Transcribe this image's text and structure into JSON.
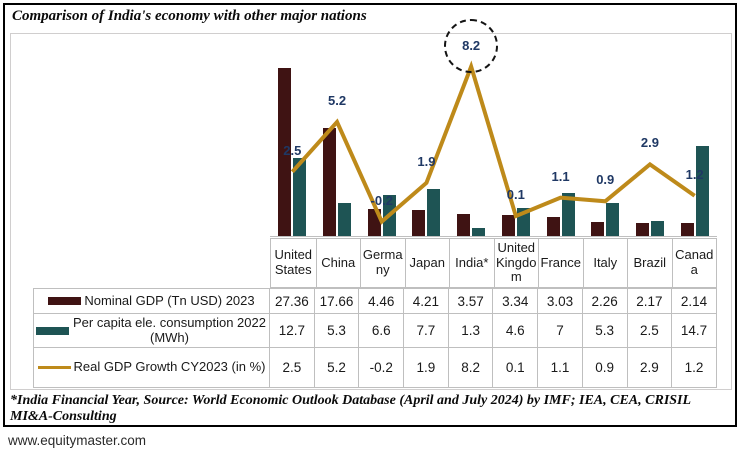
{
  "page": {
    "title": "Comparison of India's economy with other major nations",
    "footnote": "*India Financial Year, Source: World Economic Outlook Database (April and July 2024) by IMF; IEA, CEA, CRISIL MI&A-Consulting",
    "website": "www.equitymaster.com"
  },
  "chart_data": {
    "type": "combo",
    "title": "Comparison of India's economy with other major nations",
    "categories": [
      "United States",
      "China",
      "Germany",
      "Japan",
      "India*",
      "United Kingdom",
      "France",
      "Italy",
      "Brazil",
      "Canada"
    ],
    "series": [
      {
        "name": "Nominal GDP (Tn USD) 2023",
        "type": "bar",
        "color": "#3F1313",
        "values": [
          27.36,
          17.66,
          4.46,
          4.21,
          3.57,
          3.34,
          3.03,
          2.26,
          2.17,
          2.14
        ]
      },
      {
        "name": "Per capita ele. consumption 2022 (MWh)",
        "type": "bar",
        "color": "#1E5454",
        "values": [
          12.7,
          5.3,
          6.6,
          7.7,
          1.3,
          4.6,
          7,
          5.3,
          2.5,
          14.7
        ]
      },
      {
        "name": "Real GDP Growth CY2023 (in %)",
        "type": "line",
        "color": "#BE8A1A",
        "label_color": "#1F3864",
        "show_labels": true,
        "values": [
          2.5,
          5.2,
          -0.2,
          1.9,
          8.2,
          0.1,
          1.1,
          0.9,
          2.9,
          1.2
        ]
      }
    ],
    "annotation": {
      "type": "dashed-circle",
      "category": "India*",
      "series": "Real GDP Growth CY2023 (in %)",
      "value": 8.2
    },
    "axes": {
      "primary_axis_hint": [
        0,
        33
      ],
      "secondary_axis_hint": [
        -1,
        10
      ],
      "gridlines": false,
      "legend_position": "data-table-left",
      "data_table": true
    }
  },
  "colors": {
    "bar_gdp": "#3F1313",
    "bar_electricity": "#1E5454",
    "line_growth": "#BE8A1A",
    "data_label": "#1F3864",
    "table_border": "#BFBFBF",
    "frame_border": "#D0CECE"
  }
}
